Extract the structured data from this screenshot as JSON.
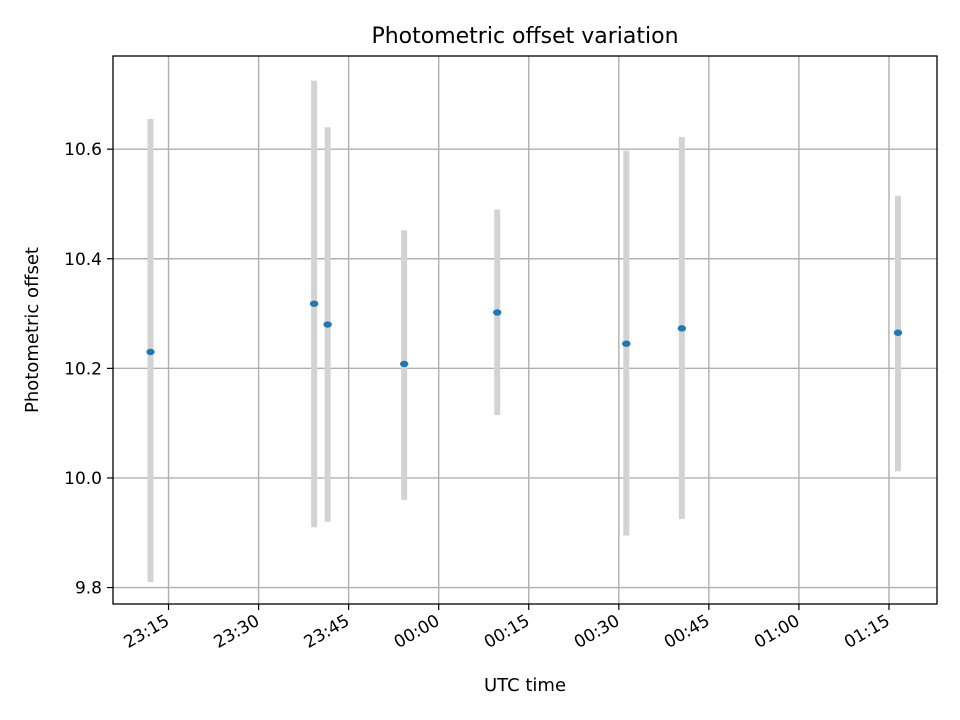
{
  "chart_data": {
    "type": "scatter",
    "title": "Photometric offset variation",
    "xlabel": "UTC time",
    "ylabel": "Photometric offset",
    "x_tick_labels": [
      "23:15",
      "23:30",
      "23:45",
      "00:00",
      "00:15",
      "00:30",
      "00:45",
      "01:00",
      "01:15"
    ],
    "y_tick_labels": [
      "9.8",
      "10.0",
      "10.2",
      "10.4",
      "10.6"
    ],
    "y_ticks": [
      9.8,
      10.0,
      10.2,
      10.4,
      10.6
    ],
    "ylim": [
      9.77,
      10.77
    ],
    "xlim": [
      "23:05:45",
      "01:23:00"
    ],
    "grid": true,
    "points": [
      {
        "time": "23:12:00",
        "y": 10.23,
        "low": 9.81,
        "high": 10.655
      },
      {
        "time": "23:39:15",
        "y": 10.318,
        "low": 9.91,
        "high": 10.725
      },
      {
        "time": "23:41:30",
        "y": 10.28,
        "low": 9.92,
        "high": 10.64
      },
      {
        "time": "23:54:15",
        "y": 10.208,
        "low": 9.96,
        "high": 10.452
      },
      {
        "time": "00:09:45",
        "y": 10.302,
        "low": 10.115,
        "high": 10.49
      },
      {
        "time": "00:31:15",
        "y": 10.245,
        "low": 9.895,
        "high": 10.597
      },
      {
        "time": "00:40:30",
        "y": 10.273,
        "low": 9.925,
        "high": 10.622
      },
      {
        "time": "01:16:30",
        "y": 10.265,
        "low": 10.012,
        "high": 10.515
      }
    ],
    "colors": {
      "point": "#1f77b4",
      "errorbar": "#d3d3d3",
      "grid": "#b0b0b0"
    }
  }
}
